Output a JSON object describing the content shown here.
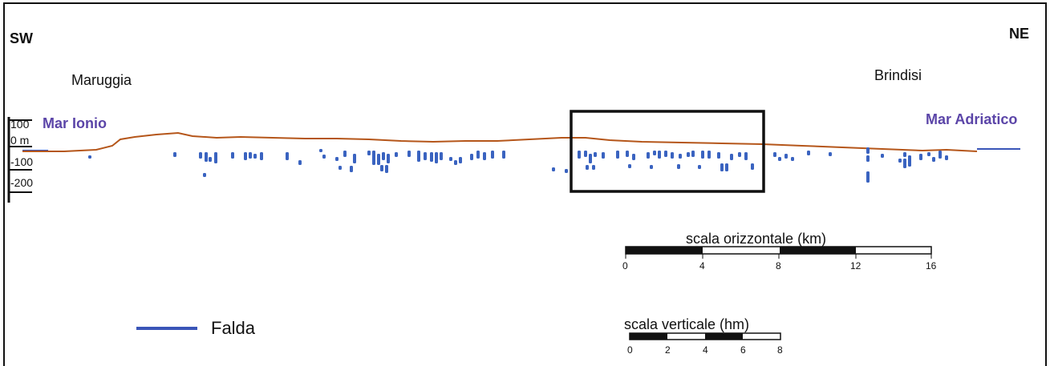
{
  "directions": {
    "left": "SW",
    "right": "NE"
  },
  "towns": {
    "left": "Maruggia",
    "right": "Brindisi"
  },
  "seas": {
    "left": "Mar Ionio",
    "right": "Mar Adriatico"
  },
  "colors": {
    "sea_label": "#5b45a8",
    "profile": "#b5561a",
    "points": "#3a63c0",
    "water_table": "#3a55b8",
    "frame": "#111111"
  },
  "elevation_axis": {
    "ticks": [
      "100",
      "0 m",
      "-100",
      "-200"
    ]
  },
  "horizontal_scale": {
    "title": "scala orizzontale (km)",
    "labels": [
      "0",
      "4",
      "8",
      "12",
      "16"
    ]
  },
  "vertical_scale": {
    "title": "scala verticale (hm)",
    "labels": [
      "0",
      "2",
      "4",
      "6",
      "8"
    ]
  },
  "legend": {
    "label": "Falda"
  },
  "highlight_box": {
    "present": true
  }
}
